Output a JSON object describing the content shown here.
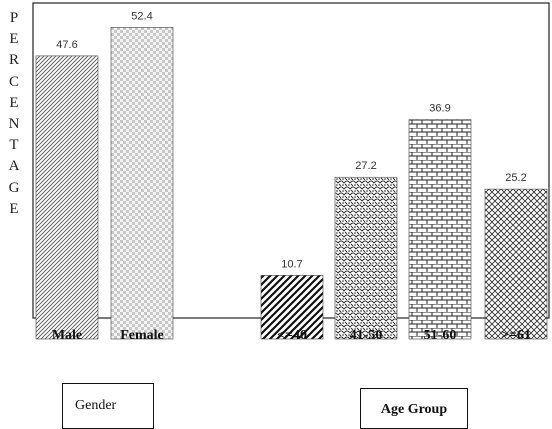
{
  "chart_data": {
    "type": "bar",
    "categories": [
      "Male",
      "Female",
      "<=40",
      "41-50",
      "51-60",
      ">=61"
    ],
    "values": [
      47.6,
      52.4,
      10.7,
      27.2,
      36.9,
      25.2
    ],
    "value_labels": [
      "47.6",
      "52.4",
      "10.7",
      "27.2",
      "36.9",
      "25.2"
    ],
    "groups": [
      {
        "label": "Gender",
        "categories": [
          "Male",
          "Female"
        ]
      },
      {
        "label": "Age Group",
        "categories": [
          "<=40",
          "41-50",
          "51-60",
          ">=61"
        ]
      }
    ],
    "ylabel": "PERCENTAGE",
    "ylim": [
      0,
      57
    ],
    "grid": false,
    "patterns": [
      "diagonal-hatch",
      "checker-light",
      "bold-diagonal",
      "speckle",
      "brick",
      "crosshatch"
    ]
  }
}
